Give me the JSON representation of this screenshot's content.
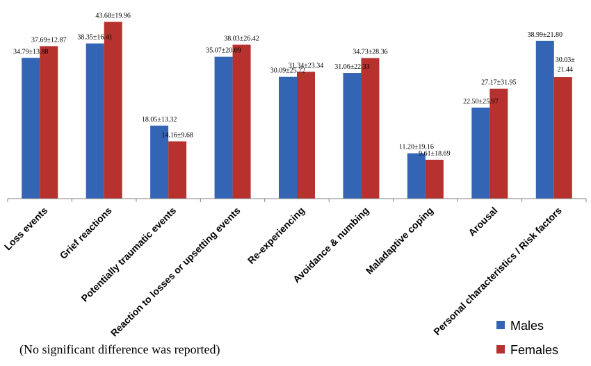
{
  "chart_data": {
    "type": "bar",
    "categories": [
      "Loss events",
      "Grief reactions",
      "Potentially traumatic events",
      "Reaction to losses or upsetting events",
      "Re-experiencing",
      "Avoidance & numbing",
      "Maladaptive coping",
      "Arousal",
      "Personal characteristics / Risk factors"
    ],
    "series": [
      {
        "name": "Males",
        "color": "#3465b4",
        "values": [
          34.79,
          38.35,
          18.05,
          35.07,
          30.09,
          31.06,
          11.2,
          22.5,
          38.99
        ],
        "labels": [
          "34.79±13.88",
          "38.35±16.41",
          "18.05±13.32",
          "35.07±20.09",
          "30.09±25.72",
          "31.06±22.33",
          "11.20±19.16",
          "22.50±25.97",
          "38.99±21.80"
        ]
      },
      {
        "name": "Females",
        "color": "#b7312e",
        "values": [
          37.69,
          43.68,
          14.16,
          38.03,
          31.34,
          34.73,
          9.61,
          27.17,
          30.03
        ],
        "labels": [
          "37.69±12.87",
          "43.68±19.96",
          "14.16±9.68",
          "38.03±26.42",
          "31.34±23.34",
          "34.73±28.36",
          "9.61±18.69",
          "27.17±31.95",
          "30.03±21.44"
        ]
      }
    ],
    "ylim": [
      0,
      46
    ],
    "grid": false,
    "legend_position": "bottom-right",
    "note": "(No significant difference was reported)"
  }
}
